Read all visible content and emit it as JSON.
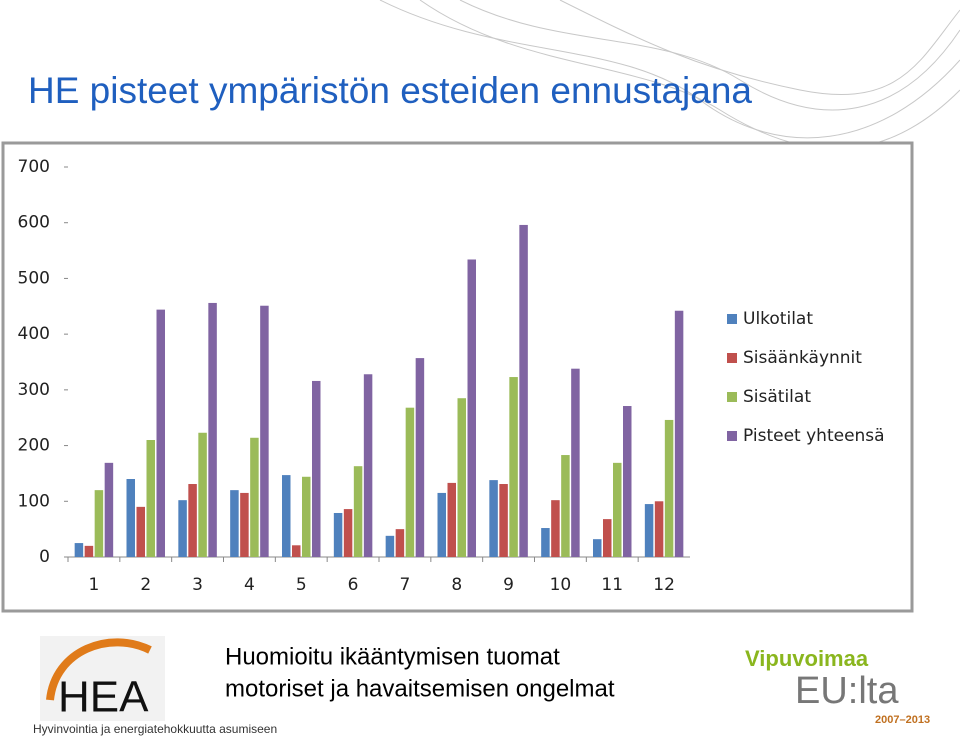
{
  "chart_data": {
    "type": "bar",
    "title": "HE pisteet ympäristön esteiden ennustajana",
    "categories": [
      "1",
      "2",
      "3",
      "4",
      "5",
      "6",
      "7",
      "8",
      "9",
      "10",
      "11",
      "12"
    ],
    "series": [
      {
        "name": "Ulkotilat",
        "color": "#4f81bd",
        "values": [
          25,
          140,
          102,
          120,
          147,
          79,
          38,
          115,
          138,
          52,
          32,
          95
        ]
      },
      {
        "name": "Sisäänkäynnit",
        "color": "#c0504d",
        "values": [
          20,
          90,
          131,
          115,
          21,
          86,
          50,
          133,
          131,
          102,
          68,
          100
        ]
      },
      {
        "name": "Sisätilat",
        "color": "#9bbb59",
        "values": [
          120,
          210,
          223,
          214,
          144,
          163,
          268,
          285,
          323,
          183,
          169,
          246
        ]
      },
      {
        "name": "Pisteet yhteensä",
        "color": "#8064a2",
        "values": [
          169,
          444,
          456,
          451,
          316,
          328,
          357,
          534,
          596,
          338,
          271,
          442
        ]
      }
    ],
    "ylim": [
      0,
      700
    ],
    "yticks": [
      0,
      100,
      200,
      300,
      400,
      500,
      600,
      700
    ],
    "grid": false,
    "legend": "right"
  },
  "caption": [
    "Huomioitu ikääntymisen tuomat",
    "motoriset ja havaitsemisen ongelmat"
  ],
  "logos": {
    "hea": "HEA",
    "hea_tagline": "Hyvinvointia ja energiatehokkuutta asumiseen",
    "eu_top": "Vipuvoimaa",
    "eu_main": "EU:lta",
    "eu_years": "2007–2013"
  }
}
